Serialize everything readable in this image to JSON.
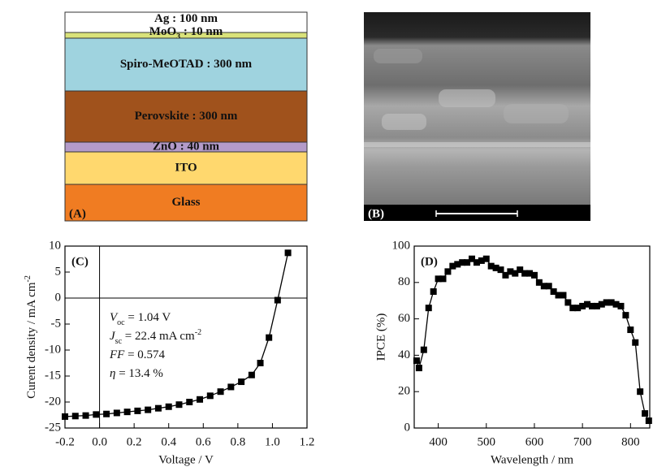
{
  "diagram": {
    "label": "(A)",
    "layers": [
      {
        "label": "Ag : 100 nm",
        "color": "#ffffff"
      },
      {
        "label": [
          {
            "text": "MoO"
          },
          {
            "text": "3",
            "kind": "sub"
          },
          {
            "text": " : 10 nm"
          }
        ],
        "color": "#d9e27a"
      },
      {
        "label": "Spiro-MeOTAD : 300 nm",
        "color": "#9fd3df"
      },
      {
        "label": "Perovskite : 300 nm",
        "color": "#a0521c"
      },
      {
        "label": "ZnO : 40 nm",
        "color": "#b49bc9"
      },
      {
        "label": "ITO",
        "color": "#ffd86e"
      },
      {
        "label": "Glass",
        "color": "#f07c22"
      }
    ]
  },
  "image": {
    "label": "(B)"
  },
  "chart_data": [
    {
      "type": "line",
      "label": "(C)",
      "x_label": "Voltage / V",
      "y_label": [
        {
          "text": "Curent density / mA cm"
        },
        {
          "text": "-2",
          "kind": "sup"
        }
      ],
      "x": [
        -0.2,
        -0.14,
        -0.08,
        -0.02,
        0.04,
        0.1,
        0.16,
        0.22,
        0.28,
        0.34,
        0.4,
        0.46,
        0.52,
        0.58,
        0.64,
        0.7,
        0.76,
        0.82,
        0.88,
        0.93,
        0.98,
        1.03,
        1.09
      ],
      "values": [
        -22.8,
        -22.7,
        -22.6,
        -22.4,
        -22.3,
        -22.1,
        -21.9,
        -21.7,
        -21.5,
        -21.2,
        -20.9,
        -20.5,
        -20.0,
        -19.5,
        -18.8,
        -18.0,
        -17.1,
        -16.1,
        -14.8,
        -12.5,
        -7.6,
        -0.4,
        8.7
      ],
      "color": "#000000",
      "xlim": [
        -0.2,
        1.2
      ],
      "xticks": [
        -0.2,
        {
          "value": 0,
          "label": "0.0"
        },
        0.2,
        0.4,
        0.6,
        0.8,
        {
          "value": 1,
          "label": "1.0"
        },
        1.2
      ],
      "ylim": [
        -25,
        10
      ],
      "yticks": [
        -25,
        -20,
        -15,
        -10,
        -5,
        0,
        5,
        10
      ],
      "zero_lines": true,
      "annotations": [
        [
          {
            "text": "V",
            "kind": "italic"
          },
          {
            "text": "oc",
            "kind": "sub"
          },
          {
            "text": " = 1.04 V"
          }
        ],
        [
          {
            "text": "J",
            "kind": "italic"
          },
          {
            "text": "sc",
            "kind": "sub"
          },
          {
            "text": " = 22.4 mA cm"
          },
          {
            "text": "-2",
            "kind": "sup"
          }
        ],
        [
          {
            "text": "FF",
            "kind": "italic"
          },
          {
            "text": " = 0.574"
          }
        ],
        [
          {
            "text": "η",
            "kind": "italic"
          },
          {
            "text": " = 13.4 %"
          }
        ]
      ]
    },
    {
      "type": "line",
      "label": "(D)",
      "x_label": "Wavelength / nm",
      "y_label": "IPCE (%)",
      "x": [
        355,
        360,
        370,
        380,
        390,
        400,
        410,
        420,
        430,
        440,
        450,
        460,
        470,
        480,
        490,
        500,
        510,
        520,
        530,
        540,
        550,
        560,
        570,
        580,
        590,
        600,
        610,
        620,
        630,
        640,
        650,
        660,
        670,
        680,
        690,
        700,
        710,
        720,
        730,
        740,
        750,
        760,
        770,
        780,
        790,
        800,
        810,
        820,
        830,
        838
      ],
      "values": [
        37,
        33,
        43,
        66,
        75,
        82,
        82,
        86,
        89,
        90,
        91,
        91,
        93,
        91,
        92,
        93,
        89,
        88,
        87,
        84,
        86,
        85,
        87,
        85,
        85,
        84,
        80,
        78,
        78,
        75,
        73,
        73,
        69,
        66,
        66,
        67,
        68,
        67,
        67,
        68,
        69,
        69,
        68,
        67,
        62,
        54,
        47,
        20,
        8,
        4
      ],
      "color": "#000000",
      "xlim": [
        350,
        840
      ],
      "xticks": [
        400,
        500,
        600,
        700,
        800
      ],
      "ylim": [
        0,
        100
      ],
      "yticks": [
        0,
        20,
        40,
        60,
        80,
        100
      ],
      "zero_lines": false
    }
  ]
}
